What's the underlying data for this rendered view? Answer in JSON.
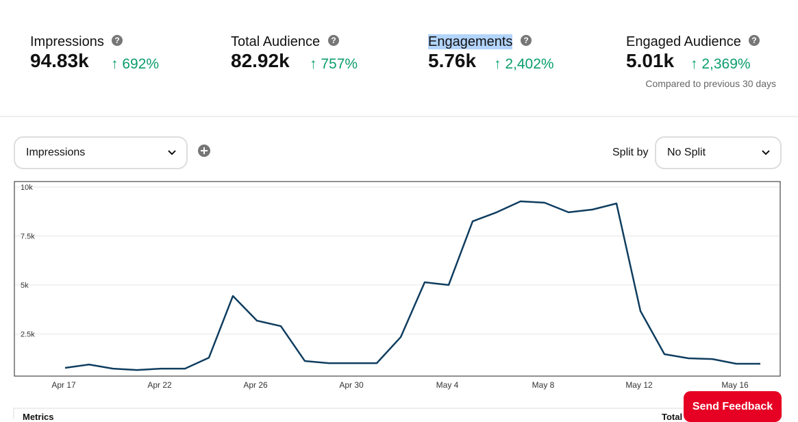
{
  "metrics": [
    {
      "title": "Impressions",
      "value": "94.83k",
      "change": "692%"
    },
    {
      "title": "Total Audience",
      "value": "82.92k",
      "change": "757%"
    },
    {
      "title": "Engagements",
      "value": "5.76k",
      "change": "2,402%"
    },
    {
      "title": "Engaged Audience",
      "value": "5.01k",
      "change": "2,369%"
    }
  ],
  "comparison_note": "Compared to previous 30 days",
  "controls": {
    "metric_dropdown": "Impressions",
    "split_label": "Split by",
    "split_dropdown": "No Split"
  },
  "table": {
    "headers": [
      "Metrics",
      "Total"
    ]
  },
  "feedback_button": "Send Feedback",
  "chart_data": {
    "type": "line",
    "categories": [
      "Apr 17",
      null,
      null,
      null,
      "Apr 22",
      null,
      null,
      null,
      "Apr 26",
      null,
      null,
      null,
      "Apr 30",
      null,
      null,
      null,
      "May 4",
      null,
      null,
      null,
      "May 8",
      null,
      null,
      null,
      "May 12",
      null,
      null,
      null,
      "May 16",
      null
    ],
    "series": [
      {
        "name": "Impressions",
        "color": "#0f3d5f",
        "values": [
          770,
          940,
          730,
          660,
          730,
          730,
          1290,
          4440,
          3180,
          2900,
          1120,
          1010,
          1010,
          1010,
          2340,
          5140,
          5000,
          8250,
          8710,
          9270,
          9200,
          8710,
          8850,
          9160,
          3670,
          1470,
          1260,
          1220,
          980,
          980
        ]
      }
    ],
    "ylim": [
      0,
      10000
    ],
    "yticks": [
      {
        "value": 2500,
        "label": "2.5k"
      },
      {
        "value": 5000,
        "label": "5k"
      },
      {
        "value": 7500,
        "label": "7.5k"
      },
      {
        "value": 10000,
        "label": "10k"
      }
    ],
    "grid": true
  }
}
